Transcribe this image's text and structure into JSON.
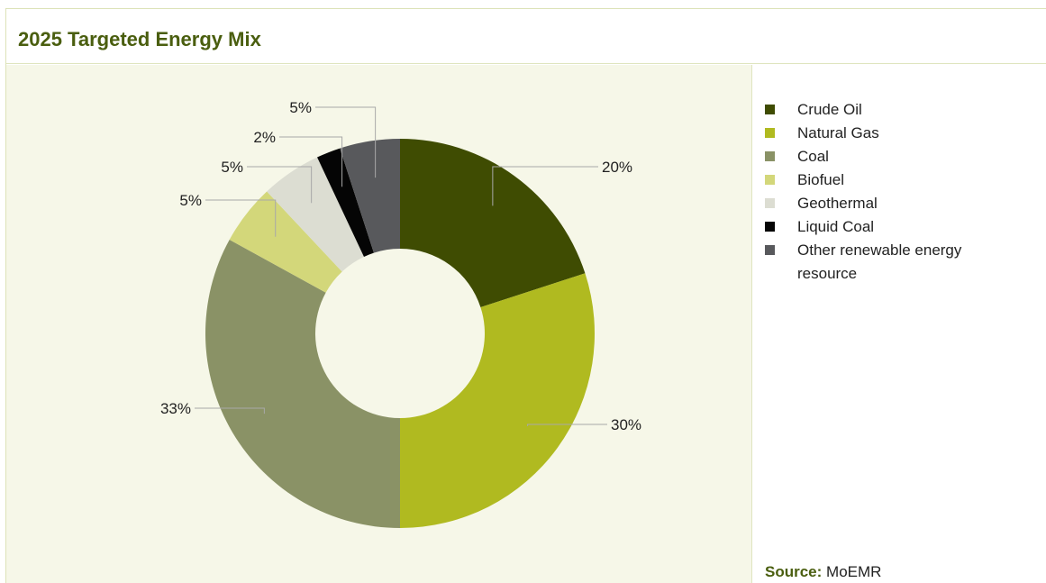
{
  "title": "2025 Targeted Energy Mix",
  "source": {
    "label": "Source:",
    "value": "MoEMR"
  },
  "chart_data": {
    "type": "pie",
    "variant": "donut",
    "title": "2025 Targeted Energy Mix",
    "legend_position": "right",
    "slices": [
      {
        "name": "Crude Oil",
        "value": 20,
        "label": "20%",
        "color": "#3f4c02"
      },
      {
        "name": "Natural Gas",
        "value": 30,
        "label": "30%",
        "color": "#b0ba20"
      },
      {
        "name": "Coal",
        "value": 33,
        "label": "33%",
        "color": "#8a9266"
      },
      {
        "name": "Biofuel",
        "value": 5,
        "label": "5%",
        "color": "#d3d77a"
      },
      {
        "name": "Geothermal",
        "value": 5,
        "label": "5%",
        "color": "#dcddd2"
      },
      {
        "name": "Liquid Coal",
        "value": 2,
        "label": "2%",
        "color": "#050505"
      },
      {
        "name": "Other renewable energy resource",
        "value": 5,
        "label": "5%",
        "color": "#58595c"
      }
    ]
  }
}
